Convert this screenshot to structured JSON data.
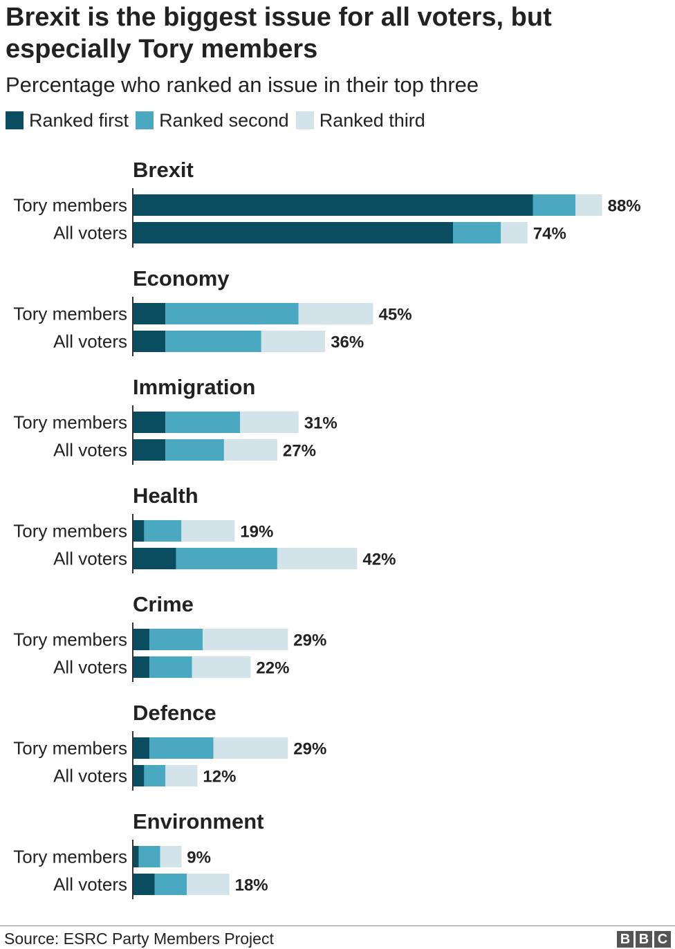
{
  "chart_data": {
    "type": "bar",
    "orientation": "horizontal",
    "stacked": true,
    "title": "Brexit is the biggest issue for all voters, but especially Tory members",
    "subtitle": "Percentage who ranked an issue in their top three",
    "legend": [
      {
        "label": "Ranked first",
        "color": "#0b4d60"
      },
      {
        "label": "Ranked second",
        "color": "#4aa8c0"
      },
      {
        "label": "Ranked third",
        "color": "#d2e3e9"
      }
    ],
    "xlim": [
      0,
      100
    ],
    "groups": [
      {
        "issue": "Brexit",
        "rows": [
          {
            "label": "Tory members",
            "first": 75,
            "second": 8,
            "third": 5,
            "total_label": "88%"
          },
          {
            "label": "All voters",
            "first": 60,
            "second": 9,
            "third": 5,
            "total_label": "74%"
          }
        ]
      },
      {
        "issue": "Economy",
        "rows": [
          {
            "label": "Tory members",
            "first": 6,
            "second": 25,
            "third": 14,
            "total_label": "45%"
          },
          {
            "label": "All voters",
            "first": 6,
            "second": 18,
            "third": 12,
            "total_label": "36%"
          }
        ]
      },
      {
        "issue": "Immigration",
        "rows": [
          {
            "label": "Tory members",
            "first": 6,
            "second": 14,
            "third": 11,
            "total_label": "31%"
          },
          {
            "label": "All voters",
            "first": 6,
            "second": 11,
            "third": 10,
            "total_label": "27%"
          }
        ]
      },
      {
        "issue": "Health",
        "rows": [
          {
            "label": "Tory members",
            "first": 2,
            "second": 7,
            "third": 10,
            "total_label": "19%"
          },
          {
            "label": "All voters",
            "first": 8,
            "second": 19,
            "third": 15,
            "total_label": "42%"
          }
        ]
      },
      {
        "issue": "Crime",
        "rows": [
          {
            "label": "Tory members",
            "first": 3,
            "second": 10,
            "third": 16,
            "total_label": "29%"
          },
          {
            "label": "All voters",
            "first": 3,
            "second": 8,
            "third": 11,
            "total_label": "22%"
          }
        ]
      },
      {
        "issue": "Defence",
        "rows": [
          {
            "label": "Tory members",
            "first": 3,
            "second": 12,
            "third": 14,
            "total_label": "29%"
          },
          {
            "label": "All voters",
            "first": 2,
            "second": 4,
            "third": 6,
            "total_label": "12%"
          }
        ]
      },
      {
        "issue": "Environment",
        "rows": [
          {
            "label": "Tory members",
            "first": 1,
            "second": 4,
            "third": 4,
            "total_label": "9%"
          },
          {
            "label": "All voters",
            "first": 4,
            "second": 6,
            "third": 8,
            "total_label": "18%"
          }
        ]
      }
    ]
  },
  "source": "Source: ESRC Party Members Project",
  "logo": [
    "B",
    "B",
    "C"
  ]
}
